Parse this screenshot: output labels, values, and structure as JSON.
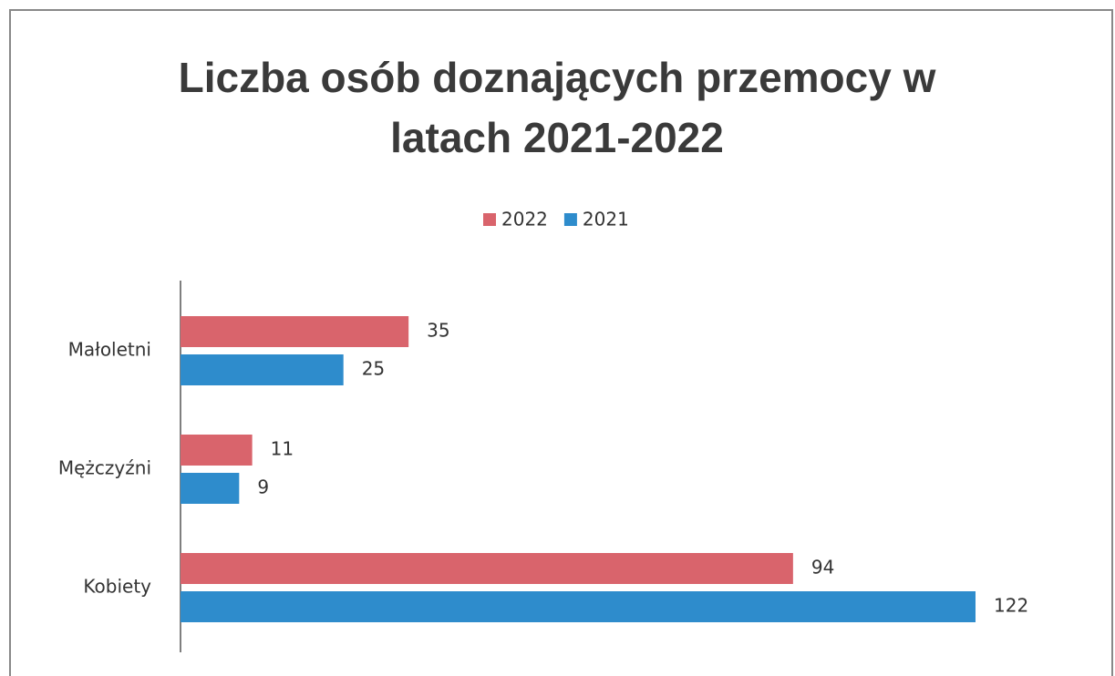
{
  "chart_data": {
    "type": "bar",
    "orientation": "horizontal",
    "title": "Liczba osób doznających przemocy w latach 2021-2022",
    "categories": [
      "Małoletni",
      "Mężczyźni",
      "Kobiety"
    ],
    "series": [
      {
        "name": "2022",
        "color": "#d9646c",
        "values": [
          35,
          11,
          94
        ]
      },
      {
        "name": "2021",
        "color": "#2e8ccc",
        "values": [
          25,
          9,
          122
        ]
      }
    ],
    "legend": "top"
  }
}
